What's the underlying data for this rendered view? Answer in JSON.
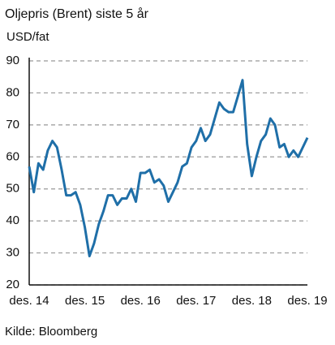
{
  "chart_data": {
    "type": "line",
    "title": "Oljepris (Brent) siste 5 år",
    "y_label": "USD/fat",
    "source": "Kilde: Bloomberg",
    "categories": [
      "des. 14",
      null,
      null,
      null,
      null,
      null,
      null,
      null,
      null,
      null,
      null,
      null,
      "des. 15",
      null,
      null,
      null,
      null,
      null,
      null,
      null,
      null,
      null,
      null,
      null,
      "des. 16",
      null,
      null,
      null,
      null,
      null,
      null,
      null,
      null,
      null,
      null,
      null,
      "des. 17",
      null,
      null,
      null,
      null,
      null,
      null,
      null,
      null,
      null,
      null,
      null,
      "des. 18",
      null,
      null,
      null,
      null,
      null,
      null,
      null,
      null,
      null,
      null,
      null,
      "des. 19"
    ],
    "series": [
      {
        "color": "#1f6fa8",
        "values": [
          57,
          49,
          58,
          56,
          62,
          65,
          63,
          56,
          48,
          48,
          49,
          45,
          38,
          29,
          33,
          39,
          43,
          48,
          48,
          45,
          47,
          47,
          50,
          46,
          55,
          55,
          56,
          52,
          53,
          51,
          46,
          49,
          52,
          57,
          58,
          63,
          65,
          69,
          65,
          67,
          72,
          77,
          75,
          74,
          74,
          79,
          84,
          64,
          54,
          60,
          65,
          67,
          72,
          70,
          63,
          64,
          60,
          62,
          60,
          63,
          66
        ]
      }
    ],
    "ylim": [
      20,
      90
    ],
    "yticks": [
      20,
      30,
      40,
      50,
      60,
      70,
      80,
      90
    ],
    "grid": true
  }
}
